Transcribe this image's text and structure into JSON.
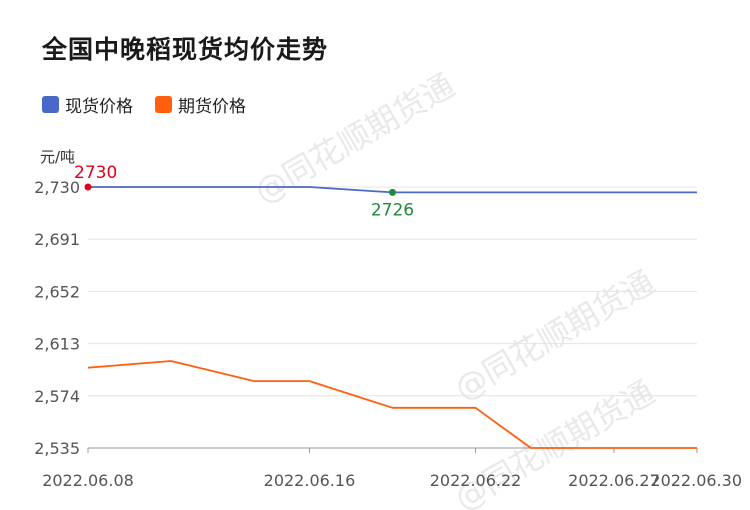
{
  "title": "全国中晚稻现货均价走势",
  "unit": "元/吨",
  "watermark": "@同花顺期货通",
  "legend": [
    {
      "label": "现货价格",
      "color": "#4a68c8"
    },
    {
      "label": "期货价格",
      "color": "#ff5f0f"
    }
  ],
  "chart_data": {
    "type": "line",
    "x_ticks": [
      "2022.06.08",
      "2022.06.16",
      "2022.06.22",
      "2022.06.27",
      "2022.06.30"
    ],
    "y_ticks": [
      2730,
      2691,
      2652,
      2613,
      2574,
      2535
    ],
    "ylim": [
      2535,
      2730
    ],
    "grid": true,
    "legend_position": "top-left",
    "series": [
      {
        "name": "现货价格",
        "color": "#4a68c8",
        "x": [
          "2022.06.08",
          "2022.06.11",
          "2022.06.14",
          "2022.06.16",
          "2022.06.19",
          "2022.06.22",
          "2022.06.24",
          "2022.06.27",
          "2022.06.29",
          "2022.06.30"
        ],
        "values": [
          2730,
          2730,
          2730,
          2730,
          2726,
          2726,
          2726,
          2726,
          2726,
          2726
        ]
      },
      {
        "name": "期货价格",
        "color": "#ff5f0f",
        "x": [
          "2022.06.08",
          "2022.06.11",
          "2022.06.14",
          "2022.06.16",
          "2022.06.19",
          "2022.06.22",
          "2022.06.24",
          "2022.06.27",
          "2022.06.29",
          "2022.06.30"
        ],
        "values": [
          2595,
          2600,
          2585,
          2585,
          2565,
          2565,
          2535,
          2535,
          2535,
          2535
        ]
      }
    ],
    "annotations": [
      {
        "series": 0,
        "index": 0,
        "label": "2730",
        "color": "#e0001b",
        "position": "above"
      },
      {
        "series": 0,
        "index": 4,
        "label": "2726",
        "color": "#1f8a3a",
        "position": "below"
      }
    ]
  }
}
